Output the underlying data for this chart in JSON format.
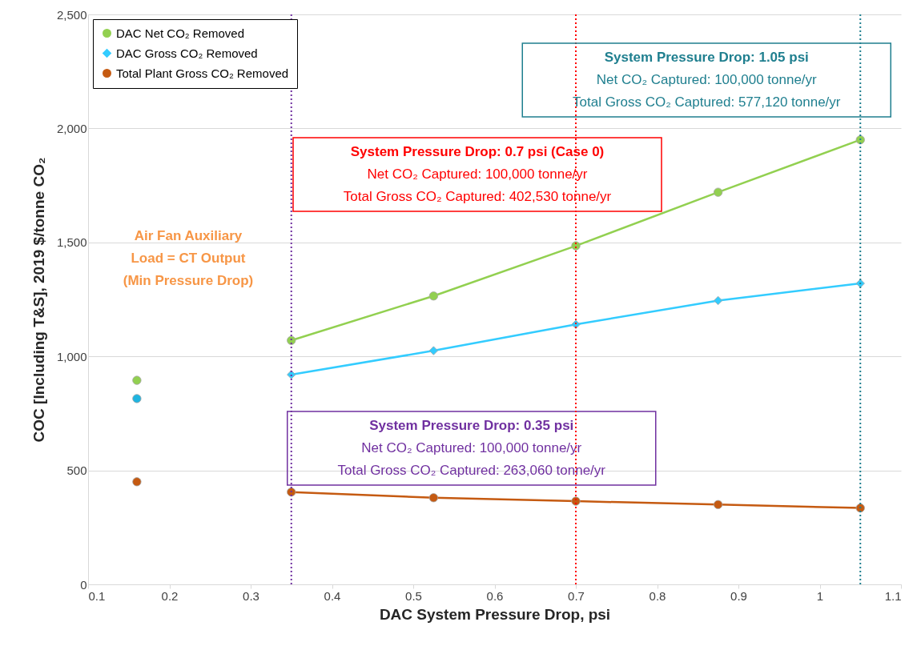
{
  "chart_data": {
    "type": "line",
    "xlabel": "DAC System Pressure Drop, psi",
    "ylabel": "COC [Including T&S], 2019 $/tonne CO₂",
    "xlim": [
      0.1,
      1.1
    ],
    "xticks": [
      0.1,
      0.2,
      0.3,
      0.4,
      0.5,
      0.6,
      0.7,
      0.8,
      0.9,
      1,
      1.1
    ],
    "ylim": [
      0,
      2500
    ],
    "yticks": [
      0,
      500,
      {
        "value": 1000,
        "label": "1,000"
      },
      {
        "value": 1500,
        "label": "1,500"
      },
      {
        "value": 2000,
        "label": "2,000"
      },
      {
        "value": 2500,
        "label": "2,500"
      }
    ],
    "grid": "y",
    "legend": "top left",
    "series": [
      {
        "name": "DAC Net CO₂ Removed",
        "color": "#92d050",
        "marker": "circle",
        "x": [
          0.35,
          0.525,
          0.7,
          0.875,
          1.05
        ],
        "values": [
          1070,
          1265,
          1485,
          1720,
          1950
        ]
      },
      {
        "name": "DAC Gross CO₂ Removed",
        "color": "#33ccff",
        "marker": "diamond",
        "x": [
          0.35,
          0.525,
          0.7,
          0.875,
          1.05
        ],
        "values": [
          920,
          1025,
          1140,
          1245,
          1320
        ]
      },
      {
        "name": "Total Plant Gross CO₂ Removed",
        "color": "#c55a11",
        "marker": "circle",
        "x": [
          0.35,
          0.525,
          0.7,
          0.875,
          1.05
        ],
        "values": [
          405,
          380,
          365,
          350,
          335
        ]
      },
      {
        "type": "scatter",
        "color": "#92d050",
        "marker": "circle",
        "x": [
          0.16
        ],
        "values": [
          895
        ]
      },
      {
        "type": "scatter",
        "color": "#1fb4e0",
        "marker": "circle",
        "x": [
          0.16
        ],
        "values": [
          815
        ]
      },
      {
        "type": "scatter",
        "color": "#c55a11",
        "marker": "circle",
        "x": [
          0.16
        ],
        "values": [
          450
        ]
      }
    ],
    "ref_lines": [
      {
        "axis": "x",
        "value": 0.35,
        "color": "#7030a0",
        "line_style": "dotted",
        "label": "System Pressure Drop: 0.35 psi\nNet CO₂ Captured: 100,000 tonne/yr\nTotal Gross CO₂ Captured:  263,060 tonne/yr"
      },
      {
        "axis": "x",
        "value": 0.7,
        "color": "#ff0000",
        "line_style": "dotted",
        "label": "System Pressure Drop: 0.7 psi (Case 0)\nNet CO₂ Captured: 100,000 tonne/yr\nTotal Gross CO₂ Captured:  402,530 tonne/yr"
      },
      {
        "axis": "x",
        "value": 1.05,
        "color": "#1f7f8f",
        "line_style": "dotted",
        "label": "System Pressure Drop: 1.05 psi\nNet CO₂ Captured: 100,000 tonne/yr\nTotal Gross CO₂ Captured:  577,120 tonne/yr"
      }
    ],
    "annotations": [
      "Air Fan Auxiliary",
      "Load = CT Output",
      "(Min Pressure Drop)"
    ]
  }
}
